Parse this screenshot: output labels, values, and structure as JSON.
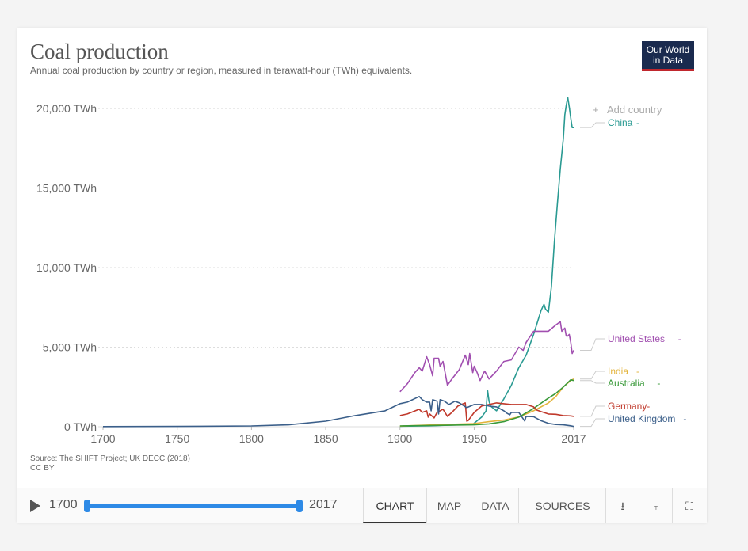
{
  "header": {
    "title": "Coal production",
    "subtitle": "Annual coal production by country or region, measured in terawatt-hour (TWh) equivalents.",
    "logo_line1": "Our World",
    "logo_line2": "in Data"
  },
  "add_country": "Add country",
  "source_line1": "Source: The SHIFT Project; UK DECC (2018)",
  "source_line2": "CC BY",
  "footer": {
    "start_year": "1700",
    "end_year": "2017",
    "tabs": [
      "CHART",
      "MAP",
      "DATA",
      "SOURCES"
    ],
    "active_tab": "CHART"
  },
  "chart_data": {
    "type": "line",
    "title": "Coal production",
    "subtitle": "Annual coal production by country or region, measured in terawatt-hour (TWh) equivalents.",
    "xlim": [
      1700,
      2017
    ],
    "ylim": [
      0,
      20700
    ],
    "x_ticks": [
      1700,
      1750,
      1800,
      1850,
      1900,
      1950,
      2017
    ],
    "y_ticks": [
      {
        "value": 0,
        "label": "0 TWh"
      },
      {
        "value": 5000,
        "label": "5,000 TWh"
      },
      {
        "value": 10000,
        "label": "10,000 TWh"
      },
      {
        "value": 15000,
        "label": "15,000 TWh"
      },
      {
        "value": 20000,
        "label": "20,000 TWh"
      }
    ],
    "grid": true,
    "legend_position": "right",
    "series": [
      {
        "name": "China",
        "color": "#2a9a92",
        "points": [
          [
            1900,
            30
          ],
          [
            1920,
            60
          ],
          [
            1940,
            120
          ],
          [
            1949,
            150
          ],
          [
            1955,
            600
          ],
          [
            1958,
            1000
          ],
          [
            1959,
            2300
          ],
          [
            1960,
            1600
          ],
          [
            1961,
            1300
          ],
          [
            1965,
            1000
          ],
          [
            1970,
            1750
          ],
          [
            1975,
            2600
          ],
          [
            1980,
            3700
          ],
          [
            1985,
            4500
          ],
          [
            1990,
            5800
          ],
          [
            1995,
            7300
          ],
          [
            1996,
            7500
          ],
          [
            1997,
            7700
          ],
          [
            1998,
            7400
          ],
          [
            2000,
            7200
          ],
          [
            2002,
            8800
          ],
          [
            2004,
            11600
          ],
          [
            2006,
            14000
          ],
          [
            2008,
            16200
          ],
          [
            2010,
            18100
          ],
          [
            2011,
            19600
          ],
          [
            2012,
            20200
          ],
          [
            2013,
            20700
          ],
          [
            2014,
            20100
          ],
          [
            2015,
            19400
          ],
          [
            2016,
            18800
          ],
          [
            2017,
            18800
          ]
        ]
      },
      {
        "name": "United States",
        "color": "#a14fb0",
        "points": [
          [
            1900,
            2200
          ],
          [
            1905,
            2700
          ],
          [
            1910,
            3400
          ],
          [
            1913,
            3700
          ],
          [
            1915,
            3500
          ],
          [
            1918,
            4400
          ],
          [
            1920,
            3900
          ],
          [
            1922,
            3200
          ],
          [
            1923,
            4300
          ],
          [
            1926,
            4300
          ],
          [
            1927,
            3800
          ],
          [
            1929,
            4100
          ],
          [
            1932,
            2600
          ],
          [
            1935,
            3000
          ],
          [
            1940,
            3600
          ],
          [
            1944,
            4500
          ],
          [
            1946,
            3900
          ],
          [
            1947,
            4600
          ],
          [
            1949,
            3400
          ],
          [
            1950,
            3800
          ],
          [
            1952,
            3400
          ],
          [
            1954,
            2900
          ],
          [
            1957,
            3500
          ],
          [
            1960,
            3000
          ],
          [
            1965,
            3500
          ],
          [
            1970,
            4100
          ],
          [
            1975,
            4200
          ],
          [
            1980,
            5000
          ],
          [
            1983,
            4800
          ],
          [
            1985,
            5300
          ],
          [
            1990,
            6000
          ],
          [
            1995,
            6000
          ],
          [
            2000,
            6000
          ],
          [
            2005,
            6400
          ],
          [
            2008,
            6600
          ],
          [
            2009,
            6000
          ],
          [
            2010,
            6100
          ],
          [
            2011,
            6200
          ],
          [
            2012,
            5700
          ],
          [
            2013,
            5700
          ],
          [
            2014,
            5800
          ],
          [
            2015,
            5300
          ],
          [
            2016,
            4600
          ],
          [
            2017,
            4800
          ]
        ]
      },
      {
        "name": "India",
        "color": "#e3b43c",
        "points": [
          [
            1900,
            40
          ],
          [
            1920,
            110
          ],
          [
            1950,
            200
          ],
          [
            1960,
            320
          ],
          [
            1970,
            420
          ],
          [
            1980,
            610
          ],
          [
            1990,
            1000
          ],
          [
            2000,
            1500
          ],
          [
            2005,
            1900
          ],
          [
            2010,
            2500
          ],
          [
            2015,
            2900
          ],
          [
            2017,
            3000
          ]
        ]
      },
      {
        "name": "Australia",
        "color": "#3a9a3a",
        "points": [
          [
            1900,
            50
          ],
          [
            1920,
            80
          ],
          [
            1950,
            120
          ],
          [
            1960,
            180
          ],
          [
            1970,
            320
          ],
          [
            1980,
            600
          ],
          [
            1990,
            1150
          ],
          [
            2000,
            1800
          ],
          [
            2005,
            2100
          ],
          [
            2010,
            2500
          ],
          [
            2015,
            2950
          ],
          [
            2017,
            2900
          ]
        ]
      },
      {
        "name": "Germany",
        "color": "#c0392b",
        "points": [
          [
            1900,
            700
          ],
          [
            1905,
            800
          ],
          [
            1913,
            1100
          ],
          [
            1915,
            900
          ],
          [
            1918,
            1000
          ],
          [
            1919,
            600
          ],
          [
            1920,
            800
          ],
          [
            1923,
            550
          ],
          [
            1925,
            900
          ],
          [
            1929,
            1100
          ],
          [
            1932,
            650
          ],
          [
            1935,
            900
          ],
          [
            1939,
            1300
          ],
          [
            1944,
            1500
          ],
          [
            1945,
            350
          ],
          [
            1946,
            400
          ],
          [
            1950,
            900
          ],
          [
            1955,
            1300
          ],
          [
            1960,
            1400
          ],
          [
            1965,
            1500
          ],
          [
            1970,
            1450
          ],
          [
            1975,
            1400
          ],
          [
            1980,
            1400
          ],
          [
            1985,
            1400
          ],
          [
            1990,
            1250
          ],
          [
            1992,
            1050
          ],
          [
            1995,
            950
          ],
          [
            2000,
            800
          ],
          [
            2005,
            780
          ],
          [
            2010,
            700
          ],
          [
            2015,
            680
          ],
          [
            2017,
            650
          ]
        ]
      },
      {
        "name": "United Kingdom",
        "color": "#3b5f8a",
        "points": [
          [
            1700,
            10
          ],
          [
            1750,
            20
          ],
          [
            1800,
            50
          ],
          [
            1825,
            120
          ],
          [
            1850,
            350
          ],
          [
            1870,
            700
          ],
          [
            1890,
            1000
          ],
          [
            1900,
            1450
          ],
          [
            1905,
            1550
          ],
          [
            1913,
            1900
          ],
          [
            1915,
            1700
          ],
          [
            1918,
            1550
          ],
          [
            1920,
            1550
          ],
          [
            1921,
            1000
          ],
          [
            1922,
            1700
          ],
          [
            1925,
            1600
          ],
          [
            1926,
            800
          ],
          [
            1927,
            1700
          ],
          [
            1930,
            1600
          ],
          [
            1933,
            1400
          ],
          [
            1937,
            1600
          ],
          [
            1940,
            1500
          ],
          [
            1945,
            1200
          ],
          [
            1950,
            1400
          ],
          [
            1955,
            1400
          ],
          [
            1960,
            1300
          ],
          [
            1965,
            1250
          ],
          [
            1970,
            1000
          ],
          [
            1972,
            850
          ],
          [
            1974,
            750
          ],
          [
            1975,
            900
          ],
          [
            1980,
            900
          ],
          [
            1984,
            360
          ],
          [
            1985,
            650
          ],
          [
            1990,
            630
          ],
          [
            1995,
            380
          ],
          [
            2000,
            210
          ],
          [
            2005,
            140
          ],
          [
            2010,
            120
          ],
          [
            2015,
            60
          ],
          [
            2017,
            20
          ]
        ]
      }
    ]
  }
}
